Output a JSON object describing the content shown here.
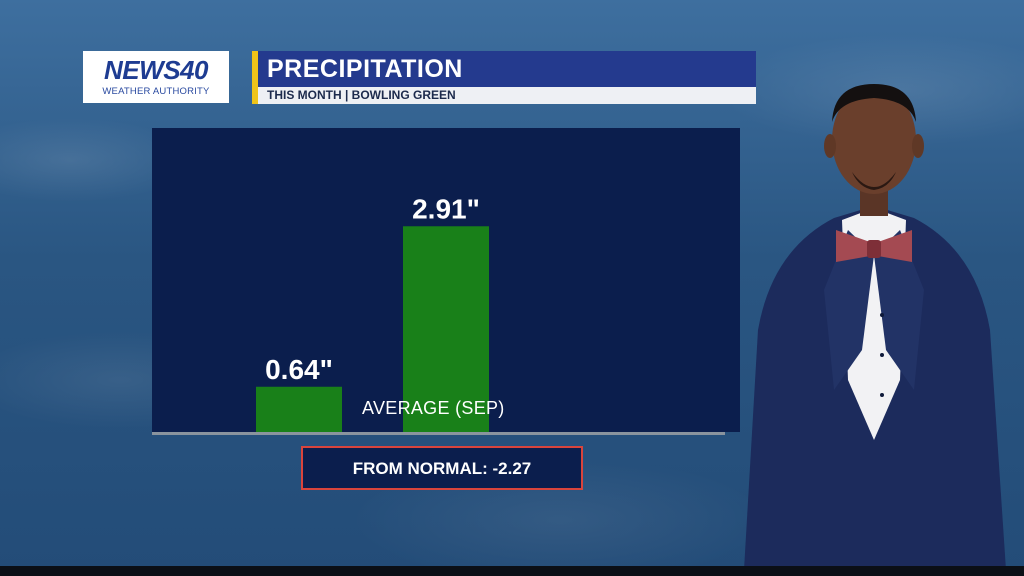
{
  "branding": {
    "logo_main": "NEWS40",
    "logo_sub": "WEATHER AUTHORITY",
    "accent_color": "#f0c419",
    "brand_color": "#243a8e"
  },
  "header": {
    "title": "PRECIPITATION",
    "subtitle": "THIS MONTH | BOWLING GREEN"
  },
  "chart_data": {
    "type": "bar",
    "title": "PRECIPITATION",
    "subtitle": "THIS MONTH | BOWLING GREEN",
    "categories": [
      "",
      "AVERAGE (SEP)"
    ],
    "values": [
      0.64,
      2.91
    ],
    "data_labels": [
      "0.64\"",
      "2.91\""
    ],
    "ylim": [
      0,
      4.3
    ],
    "bar_color": "#198019",
    "grid": false,
    "legend": "none"
  },
  "deviation": {
    "label": "FROM NORMAL: -2.27",
    "border_color": "#d9443c"
  }
}
